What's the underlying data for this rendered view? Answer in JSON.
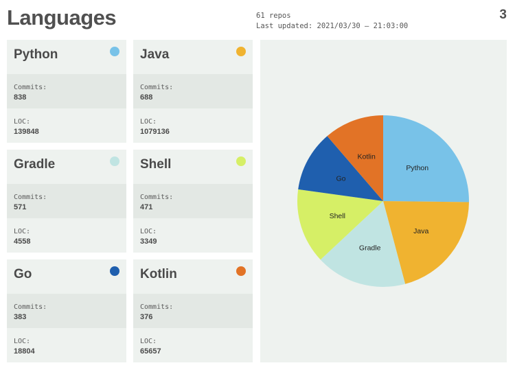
{
  "header": {
    "title": "Languages",
    "repos": "61 repos",
    "last_updated": "Last updated: 2021/03/30 – 21:03:00",
    "page_number": "3"
  },
  "labels": {
    "commits": "Commits:",
    "loc": "LOC:"
  },
  "languages": [
    {
      "name": "Python",
      "color": "#78c2e8",
      "commits": "838",
      "loc": "139848"
    },
    {
      "name": "Java",
      "color": "#f0b330",
      "commits": "688",
      "loc": "1079136"
    },
    {
      "name": "Gradle",
      "color": "#c0e4e2",
      "commits": "571",
      "loc": "4558"
    },
    {
      "name": "Shell",
      "color": "#d6ef66",
      "commits": "471",
      "loc": "3349"
    },
    {
      "name": "Go",
      "color": "#1f5fae",
      "commits": "383",
      "loc": "18804"
    },
    {
      "name": "Kotlin",
      "color": "#e27326",
      "commits": "376",
      "loc": "65657"
    }
  ],
  "chart_data": {
    "type": "pie",
    "title": "",
    "categories": [
      "Python",
      "Java",
      "Gradle",
      "Shell",
      "Go",
      "Kotlin"
    ],
    "values": [
      838,
      688,
      571,
      471,
      383,
      376
    ],
    "colors": [
      "#78c2e8",
      "#f0b330",
      "#c0e4e2",
      "#d6ef66",
      "#1f5fae",
      "#e27326"
    ],
    "start_angle": "12 o'clock, clockwise",
    "labels_inside": true,
    "legend": "none"
  }
}
